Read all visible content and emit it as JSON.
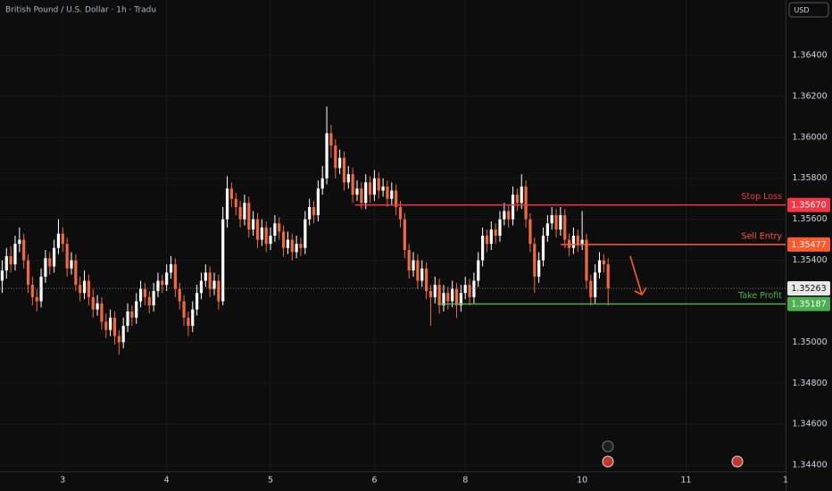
{
  "chart_data": {
    "type": "candlestick",
    "title": "British Pound / U.S. Dollar · 1h · Tradu",
    "currency": "USD",
    "colors": {
      "up": "#ffffff",
      "down": "#f06a3c"
    },
    "ylim": [
      1.3437,
      1.3667
    ],
    "yticks": [
      {
        "value": 1.344,
        "label": "1.34400"
      },
      {
        "value": 1.346,
        "label": "1.34600"
      },
      {
        "value": 1.348,
        "label": "1.34800"
      },
      {
        "value": 1.35,
        "label": "1.35000"
      },
      {
        "value": 1.354,
        "label": "1.35400"
      },
      {
        "value": 1.356,
        "label": "1.35600"
      },
      {
        "value": 1.358,
        "label": "1.35800"
      },
      {
        "value": 1.36,
        "label": "1.36000"
      },
      {
        "value": 1.362,
        "label": "1.36200"
      },
      {
        "value": 1.364,
        "label": "1.36400"
      }
    ],
    "xlim": [
      0,
      181.5
    ],
    "xticks": [
      {
        "value": 14.5,
        "label": "3"
      },
      {
        "value": 38.5,
        "label": "4"
      },
      {
        "value": 62.5,
        "label": "5"
      },
      {
        "value": 86.5,
        "label": "6"
      },
      {
        "value": 107.5,
        "label": "8"
      },
      {
        "value": 134.5,
        "label": "10"
      },
      {
        "value": 158.5,
        "label": "11"
      },
      {
        "value": 181.5,
        "label": "1"
      }
    ],
    "grid": true,
    "last": {
      "value": 1.35263,
      "label": "1.35263"
    },
    "levels": [
      {
        "name": "Stop Loss",
        "value": 1.3567,
        "value_label": "1.35670",
        "color": "#f23645"
      },
      {
        "name": "Sell Entry",
        "value": 1.35477,
        "value_label": "1.35477",
        "color": "#ff5a2e"
      },
      {
        "name": "Take Profit",
        "value": 1.35187,
        "value_label": "1.35187",
        "color": "#4caf50"
      }
    ],
    "candles": [
      [
        1.353,
        1.354,
        1.3524,
        1.3535
      ],
      [
        1.3535,
        1.3546,
        1.3531,
        1.3542
      ],
      [
        1.3542,
        1.3547,
        1.3534,
        1.3538
      ],
      [
        1.3538,
        1.3552,
        1.3535,
        1.3548
      ],
      [
        1.3548,
        1.3556,
        1.3544,
        1.355
      ],
      [
        1.355,
        1.3553,
        1.3536,
        1.354
      ],
      [
        1.354,
        1.3543,
        1.3524,
        1.3528
      ],
      [
        1.3528,
        1.3532,
        1.3518,
        1.3522
      ],
      [
        1.3522,
        1.3526,
        1.3515,
        1.352
      ],
      [
        1.352,
        1.3536,
        1.3517,
        1.3532
      ],
      [
        1.3532,
        1.3545,
        1.3529,
        1.3541
      ],
      [
        1.3541,
        1.3544,
        1.3533,
        1.3537
      ],
      [
        1.3537,
        1.355,
        1.3534,
        1.3546
      ],
      [
        1.3546,
        1.356,
        1.3543,
        1.3553
      ],
      [
        1.3553,
        1.3556,
        1.3544,
        1.3548
      ],
      [
        1.3548,
        1.3551,
        1.3532,
        1.3536
      ],
      [
        1.3536,
        1.3544,
        1.3533,
        1.354
      ],
      [
        1.354,
        1.3543,
        1.3525,
        1.3528
      ],
      [
        1.3528,
        1.3532,
        1.352,
        1.3524
      ],
      [
        1.3524,
        1.3535,
        1.3521,
        1.353
      ],
      [
        1.353,
        1.3533,
        1.3518,
        1.3522
      ],
      [
        1.3522,
        1.3526,
        1.3512,
        1.3516
      ],
      [
        1.3516,
        1.3523,
        1.3513,
        1.3519
      ],
      [
        1.3519,
        1.3522,
        1.3506,
        1.351
      ],
      [
        1.351,
        1.3514,
        1.3502,
        1.3506
      ],
      [
        1.3506,
        1.3516,
        1.3503,
        1.3512
      ],
      [
        1.3512,
        1.3515,
        1.3499,
        1.3503
      ],
      [
        1.3503,
        1.3506,
        1.3494,
        1.35
      ],
      [
        1.35,
        1.3512,
        1.3497,
        1.3508
      ],
      [
        1.3508,
        1.3519,
        1.3505,
        1.3515
      ],
      [
        1.3515,
        1.3518,
        1.3508,
        1.3512
      ],
      [
        1.3512,
        1.3524,
        1.3509,
        1.352
      ],
      [
        1.352,
        1.353,
        1.3517,
        1.3526
      ],
      [
        1.3526,
        1.3529,
        1.3518,
        1.3522
      ],
      [
        1.3522,
        1.3525,
        1.3514,
        1.3518
      ],
      [
        1.3518,
        1.3529,
        1.3515,
        1.3525
      ],
      [
        1.3525,
        1.3534,
        1.3522,
        1.353
      ],
      [
        1.353,
        1.3533,
        1.3524,
        1.3528
      ],
      [
        1.3528,
        1.3538,
        1.3525,
        1.3534
      ],
      [
        1.3534,
        1.3542,
        1.3531,
        1.3538
      ],
      [
        1.3538,
        1.3541,
        1.3522,
        1.3526
      ],
      [
        1.3526,
        1.3529,
        1.3516,
        1.352
      ],
      [
        1.352,
        1.3523,
        1.3508,
        1.3512
      ],
      [
        1.3512,
        1.3515,
        1.3503,
        1.3508
      ],
      [
        1.3508,
        1.352,
        1.3505,
        1.3516
      ],
      [
        1.3516,
        1.3528,
        1.3513,
        1.3524
      ],
      [
        1.3524,
        1.3534,
        1.3521,
        1.353
      ],
      [
        1.353,
        1.3538,
        1.3527,
        1.3534
      ],
      [
        1.3534,
        1.3537,
        1.3522,
        1.3526
      ],
      [
        1.3526,
        1.3534,
        1.3523,
        1.353
      ],
      [
        1.353,
        1.3533,
        1.3516,
        1.352
      ],
      [
        1.352,
        1.3566,
        1.3518,
        1.356
      ],
      [
        1.356,
        1.3581,
        1.3556,
        1.3575
      ],
      [
        1.3575,
        1.3578,
        1.3566,
        1.357
      ],
      [
        1.357,
        1.3573,
        1.3562,
        1.3566
      ],
      [
        1.3566,
        1.3569,
        1.3556,
        1.356
      ],
      [
        1.356,
        1.3572,
        1.3557,
        1.3568
      ],
      [
        1.3568,
        1.3571,
        1.3551,
        1.3555
      ],
      [
        1.3555,
        1.3564,
        1.3552,
        1.356
      ],
      [
        1.356,
        1.3563,
        1.3546,
        1.355
      ],
      [
        1.355,
        1.356,
        1.3547,
        1.3556
      ],
      [
        1.3556,
        1.3559,
        1.3544,
        1.3548
      ],
      [
        1.3548,
        1.3556,
        1.3545,
        1.3552
      ],
      [
        1.3552,
        1.3562,
        1.3549,
        1.3558
      ],
      [
        1.3558,
        1.3561,
        1.355,
        1.3554
      ],
      [
        1.3554,
        1.3557,
        1.3542,
        1.3546
      ],
      [
        1.3546,
        1.3554,
        1.3543,
        1.355
      ],
      [
        1.355,
        1.3553,
        1.354,
        1.3544
      ],
      [
        1.3544,
        1.3552,
        1.3541,
        1.3548
      ],
      [
        1.3548,
        1.3551,
        1.3542,
        1.3546
      ],
      [
        1.3546,
        1.3564,
        1.3543,
        1.356
      ],
      [
        1.356,
        1.357,
        1.3557,
        1.3566
      ],
      [
        1.3566,
        1.3569,
        1.3558,
        1.3562
      ],
      [
        1.3562,
        1.3579,
        1.3559,
        1.3575
      ],
      [
        1.3575,
        1.3586,
        1.3572,
        1.358
      ],
      [
        1.358,
        1.3615,
        1.3577,
        1.3602
      ],
      [
        1.3602,
        1.3606,
        1.359,
        1.3596
      ],
      [
        1.3596,
        1.3599,
        1.358,
        1.3585
      ],
      [
        1.3585,
        1.3594,
        1.3582,
        1.359
      ],
      [
        1.359,
        1.3593,
        1.3574,
        1.3578
      ],
      [
        1.3578,
        1.3586,
        1.3575,
        1.3582
      ],
      [
        1.3582,
        1.3585,
        1.3568,
        1.3572
      ],
      [
        1.3572,
        1.3579,
        1.3569,
        1.3575
      ],
      [
        1.3575,
        1.3578,
        1.3565,
        1.3568
      ],
      [
        1.3568,
        1.3582,
        1.3565,
        1.3578
      ],
      [
        1.3578,
        1.3581,
        1.3568,
        1.3572
      ],
      [
        1.3572,
        1.3584,
        1.3569,
        1.358
      ],
      [
        1.358,
        1.3583,
        1.357,
        1.3574
      ],
      [
        1.3574,
        1.358,
        1.3571,
        1.3576
      ],
      [
        1.3576,
        1.3579,
        1.3566,
        1.357
      ],
      [
        1.357,
        1.3578,
        1.3567,
        1.3574
      ],
      [
        1.3574,
        1.3577,
        1.3562,
        1.3566
      ],
      [
        1.3566,
        1.3569,
        1.3556,
        1.356
      ],
      [
        1.356,
        1.3563,
        1.3541,
        1.3545
      ],
      [
        1.3545,
        1.3548,
        1.3531,
        1.3535
      ],
      [
        1.3535,
        1.3544,
        1.3532,
        1.354
      ],
      [
        1.354,
        1.3543,
        1.3526,
        1.353
      ],
      [
        1.353,
        1.354,
        1.3527,
        1.3536
      ],
      [
        1.3536,
        1.3539,
        1.3521,
        1.3525
      ],
      [
        1.3525,
        1.3528,
        1.3508,
        1.3522
      ],
      [
        1.3522,
        1.3532,
        1.3519,
        1.3528
      ],
      [
        1.3528,
        1.3531,
        1.3514,
        1.3518
      ],
      [
        1.3518,
        1.3528,
        1.3515,
        1.3524
      ],
      [
        1.3524,
        1.3527,
        1.3516,
        1.352
      ],
      [
        1.352,
        1.353,
        1.3517,
        1.3526
      ],
      [
        1.3526,
        1.3529,
        1.3512,
        1.3518
      ],
      [
        1.3518,
        1.3528,
        1.3515,
        1.3524
      ],
      [
        1.3524,
        1.3532,
        1.3521,
        1.3528
      ],
      [
        1.3528,
        1.3531,
        1.3518,
        1.3522
      ],
      [
        1.3522,
        1.3534,
        1.3519,
        1.353
      ],
      [
        1.353,
        1.3544,
        1.3527,
        1.354
      ],
      [
        1.354,
        1.3556,
        1.3537,
        1.3552
      ],
      [
        1.3552,
        1.3555,
        1.3544,
        1.3548
      ],
      [
        1.3548,
        1.3559,
        1.3545,
        1.3555
      ],
      [
        1.3555,
        1.3558,
        1.3548,
        1.3552
      ],
      [
        1.3552,
        1.3564,
        1.3549,
        1.356
      ],
      [
        1.356,
        1.3568,
        1.3557,
        1.3564
      ],
      [
        1.3564,
        1.3567,
        1.3556,
        1.356
      ],
      [
        1.356,
        1.3576,
        1.3557,
        1.3572
      ],
      [
        1.3572,
        1.3575,
        1.3564,
        1.3568
      ],
      [
        1.3568,
        1.3582,
        1.3565,
        1.3576
      ],
      [
        1.3576,
        1.3579,
        1.3556,
        1.356
      ],
      [
        1.356,
        1.3563,
        1.3544,
        1.3548
      ],
      [
        1.3548,
        1.3551,
        1.3524,
        1.3532
      ],
      [
        1.3532,
        1.3544,
        1.3529,
        1.354
      ],
      [
        1.354,
        1.3556,
        1.3537,
        1.3552
      ],
      [
        1.3552,
        1.3562,
        1.3549,
        1.3558
      ],
      [
        1.3558,
        1.3566,
        1.3555,
        1.3562
      ],
      [
        1.3562,
        1.3565,
        1.3551,
        1.3555
      ],
      [
        1.3555,
        1.3566,
        1.3552,
        1.3562
      ],
      [
        1.3562,
        1.3565,
        1.3546,
        1.355
      ],
      [
        1.355,
        1.3553,
        1.3542,
        1.3546
      ],
      [
        1.3546,
        1.3556,
        1.3543,
        1.3552
      ],
      [
        1.3552,
        1.3555,
        1.3544,
        1.3548
      ],
      [
        1.3548,
        1.3564,
        1.3545,
        1.355
      ],
      [
        1.355,
        1.3553,
        1.3526,
        1.353
      ],
      [
        1.353,
        1.3533,
        1.3518,
        1.3522
      ],
      [
        1.3522,
        1.3538,
        1.3519,
        1.3534
      ],
      [
        1.3534,
        1.3544,
        1.3531,
        1.354
      ],
      [
        1.354,
        1.3543,
        1.3534,
        1.3538
      ],
      [
        1.3538,
        1.3541,
        1.3518,
        1.35263
      ]
    ]
  }
}
